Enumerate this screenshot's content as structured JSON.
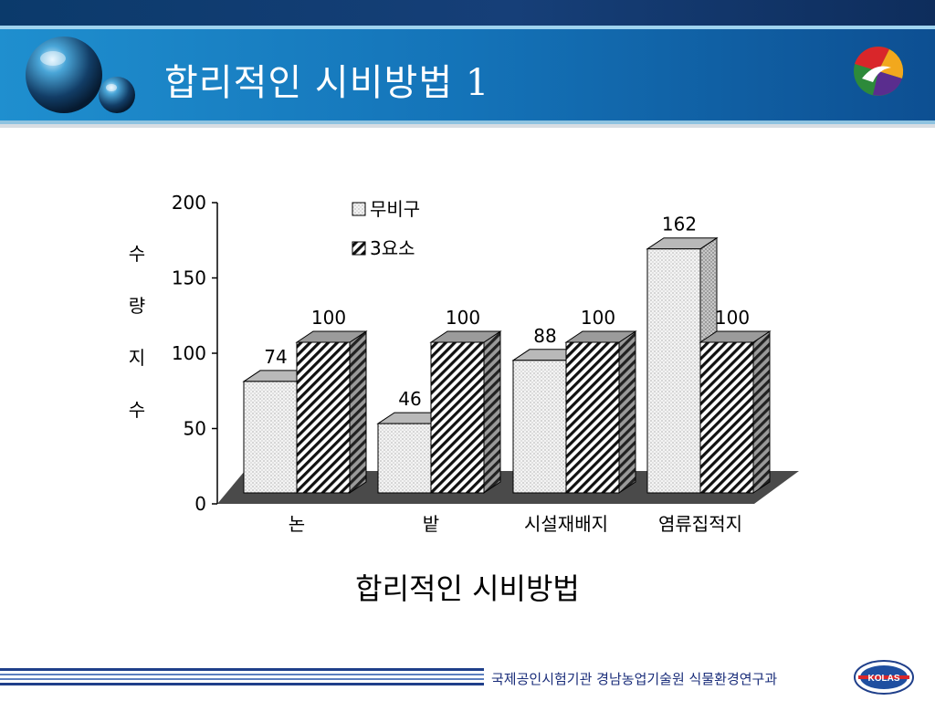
{
  "slide": {
    "title": "합리적인 시비방법 1",
    "footer_text": "국제공인시험기관 경남농업기술원 식물환경연구과",
    "logo_right_label": "KOLAS"
  },
  "chart_data": {
    "type": "bar",
    "title": "",
    "caption": "합리적인 시비방법",
    "ylabel": "수량지수",
    "xlabel": "",
    "ylim": [
      0,
      200
    ],
    "yticks": [
      0,
      50,
      100,
      150,
      200
    ],
    "categories": [
      "논",
      "밭",
      "시설재배지",
      "염류집적지"
    ],
    "series": [
      {
        "name": "무비구",
        "values": [
          74,
          46,
          88,
          162
        ],
        "color": "#f2f2f2"
      },
      {
        "name": "3요소",
        "values": [
          100,
          100,
          100,
          100
        ],
        "color": "#ffffff"
      }
    ],
    "data_labels": [
      [
        "74",
        "46",
        "88",
        "162"
      ],
      [
        "100",
        "100",
        "100",
        "100"
      ]
    ],
    "legend": "top-left",
    "grid": false
  }
}
